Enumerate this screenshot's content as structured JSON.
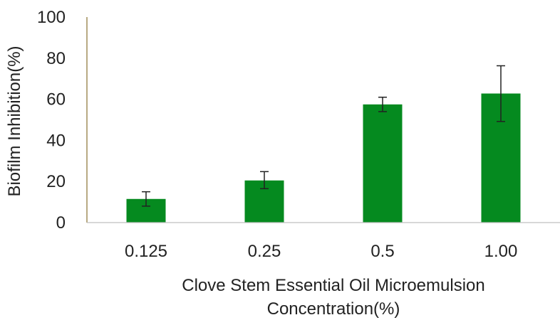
{
  "chart_data": {
    "type": "bar",
    "categories": [
      "0.125",
      "0.25",
      "0.5",
      "1.00"
    ],
    "values": [
      11.5,
      20.5,
      57.5,
      62.8
    ],
    "error_bars": [
      {
        "low": 8.0,
        "high": 15.0
      },
      {
        "low": 16.5,
        "high": 24.8
      },
      {
        "low": 54.0,
        "high": 61.0
      },
      {
        "low": 49.2,
        "high": 76.3
      }
    ],
    "title": "",
    "xlabel_lines": [
      "Clove Stem Essential Oil Microemulsion",
      "Concentration(%)"
    ],
    "ylabel": "Biofilm Inhibition(%)",
    "ylim": [
      0,
      100
    ],
    "yticks": [
      "0",
      "20",
      "40",
      "60",
      "80",
      "100"
    ],
    "grid": false,
    "legend": "none",
    "colors": {
      "bar": "#058a1f",
      "error_bar": "#222222",
      "axis": "#a08d5a",
      "baseline": "#bfbfbf"
    }
  }
}
